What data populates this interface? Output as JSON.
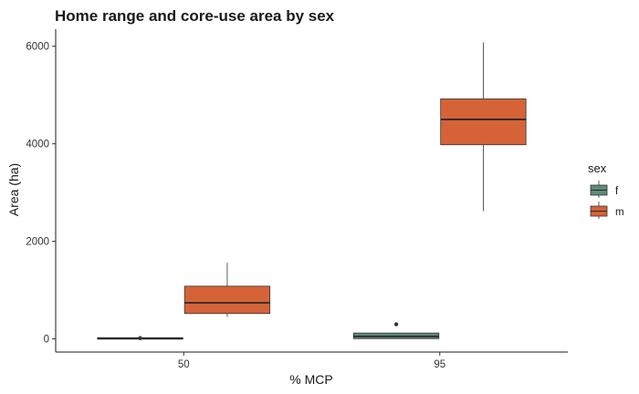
{
  "chart_data": {
    "type": "boxplot",
    "title": "Home range and core-use area by sex",
    "xlabel": "% MCP",
    "ylabel": "Area (ha)",
    "categories": [
      "50",
      "95"
    ],
    "ylim": [
      -270,
      6350
    ],
    "yticks": [
      0,
      2000,
      4000,
      6000
    ],
    "grid": false,
    "legend": {
      "title": "sex",
      "position": "right",
      "entries": [
        {
          "label": "f",
          "color": "#5e8a78"
        },
        {
          "label": "m",
          "color": "#d66338"
        }
      ]
    },
    "series": [
      {
        "name": "f",
        "color": "#5e8a78",
        "boxes": [
          {
            "category": "50",
            "min": 5,
            "q1": 10,
            "median": 15,
            "q3": 22,
            "max": 30,
            "outliers": [
              15
            ]
          },
          {
            "category": "95",
            "min": 0,
            "q1": 5,
            "median": 50,
            "q3": 120,
            "max": 130,
            "outliers": [
              300
            ]
          }
        ]
      },
      {
        "name": "m",
        "color": "#d66338",
        "boxes": [
          {
            "category": "50",
            "min": 450,
            "q1": 520,
            "median": 740,
            "q3": 1080,
            "max": 1560,
            "outliers": []
          },
          {
            "category": "95",
            "min": 2620,
            "q1": 3980,
            "median": 4500,
            "q3": 4920,
            "max": 6080,
            "outliers": []
          }
        ]
      }
    ]
  }
}
